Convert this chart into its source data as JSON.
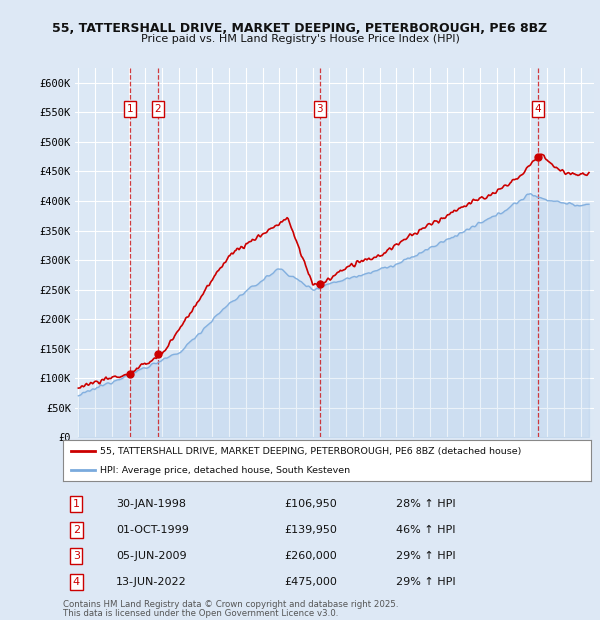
{
  "title_line1": "55, TATTERSHALL DRIVE, MARKET DEEPING, PETERBOROUGH, PE6 8BZ",
  "title_line2": "Price paid vs. HM Land Registry's House Price Index (HPI)",
  "ylim": [
    0,
    625000
  ],
  "yticks": [
    0,
    50000,
    100000,
    150000,
    200000,
    250000,
    300000,
    350000,
    400000,
    450000,
    500000,
    550000,
    600000
  ],
  "ytick_labels": [
    "£0",
    "£50K",
    "£100K",
    "£150K",
    "£200K",
    "£250K",
    "£300K",
    "£350K",
    "£400K",
    "£450K",
    "£500K",
    "£550K",
    "£600K"
  ],
  "background_color": "#dde8f5",
  "plot_bg_color": "#dce8f5",
  "grid_color": "#ffffff",
  "sale_color": "#cc0000",
  "hpi_color": "#7aaadd",
  "sale_label": "55, TATTERSHALL DRIVE, MARKET DEEPING, PETERBOROUGH, PE6 8BZ (detached house)",
  "hpi_label": "HPI: Average price, detached house, South Kesteven",
  "transactions": [
    {
      "num": 1,
      "date": "30-JAN-1998",
      "price": 106950,
      "pct": "28%",
      "year": 1998.08
    },
    {
      "num": 2,
      "date": "01-OCT-1999",
      "price": 139950,
      "pct": "46%",
      "year": 1999.75
    },
    {
      "num": 3,
      "date": "05-JUN-2009",
      "price": 260000,
      "pct": "29%",
      "year": 2009.42
    },
    {
      "num": 4,
      "date": "13-JUN-2022",
      "price": 475000,
      "pct": "29%",
      "year": 2022.45
    }
  ],
  "footer_line1": "Contains HM Land Registry data © Crown copyright and database right 2025.",
  "footer_line2": "This data is licensed under the Open Government Licence v3.0.",
  "vline_color": "#cc0000",
  "xlim_left": 1994.8,
  "xlim_right": 2025.8,
  "x_years_start": 1995,
  "x_years_end": 2025
}
